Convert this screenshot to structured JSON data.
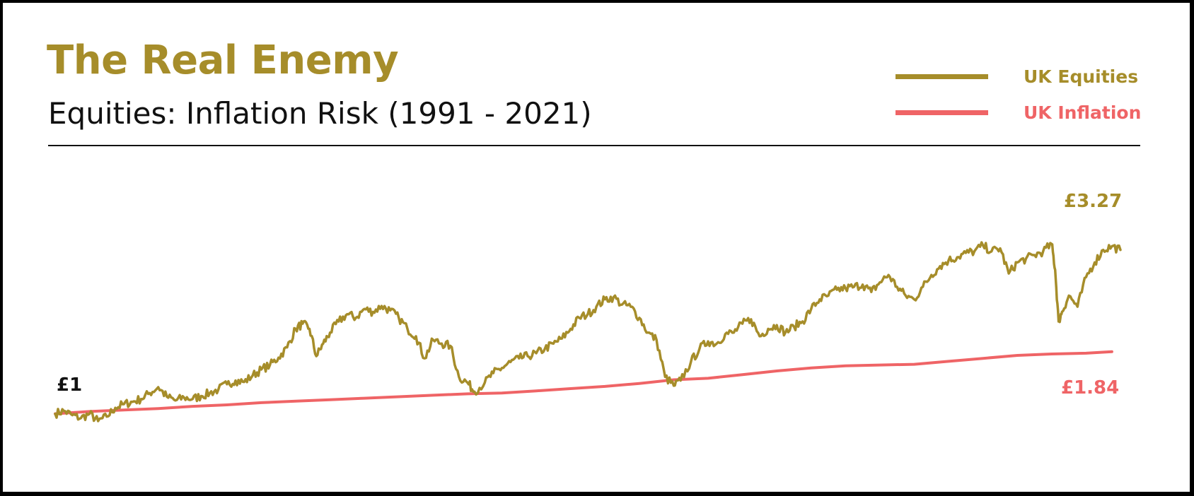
{
  "colors": {
    "equities": "#a68d2a",
    "inflation": "#ef6466",
    "text": "#111111"
  },
  "header": {
    "title": "The Real Enemy",
    "subtitle": "Equities: Inflation Risk (1991 - 2021)"
  },
  "labels": {
    "start": "£1",
    "equities_end": "£3.27",
    "inflation_end": "£1.84"
  },
  "chart_data": {
    "type": "line",
    "legend_position": "top-right",
    "grid": false,
    "axes_visible": false,
    "x_range": [
      1991,
      2021
    ],
    "y_range": [
      0.9,
      3.6
    ],
    "series": [
      {
        "name": "UK Equities",
        "color": "#a68d2a",
        "points": [
          [
            1991.0,
            1.0
          ],
          [
            1991.25,
            1.04
          ],
          [
            1991.5,
            0.98
          ],
          [
            1991.75,
            0.94
          ],
          [
            1992.0,
            1.0
          ],
          [
            1992.25,
            0.9
          ],
          [
            1992.5,
            0.96
          ],
          [
            1992.75,
            1.08
          ],
          [
            1993.0,
            1.13
          ],
          [
            1993.25,
            1.16
          ],
          [
            1993.5,
            1.2
          ],
          [
            1993.75,
            1.28
          ],
          [
            1994.0,
            1.36
          ],
          [
            1994.25,
            1.23
          ],
          [
            1994.5,
            1.18
          ],
          [
            1994.75,
            1.22
          ],
          [
            1995.0,
            1.2
          ],
          [
            1995.25,
            1.24
          ],
          [
            1995.5,
            1.28
          ],
          [
            1995.75,
            1.33
          ],
          [
            1996.0,
            1.4
          ],
          [
            1996.25,
            1.45
          ],
          [
            1996.5,
            1.43
          ],
          [
            1996.75,
            1.52
          ],
          [
            1997.0,
            1.6
          ],
          [
            1997.25,
            1.66
          ],
          [
            1997.5,
            1.76
          ],
          [
            1997.75,
            1.9
          ],
          [
            1998.0,
            2.15
          ],
          [
            1998.2,
            2.22
          ],
          [
            1998.4,
            2.15
          ],
          [
            1998.6,
            1.78
          ],
          [
            1998.8,
            1.95
          ],
          [
            1999.0,
            2.1
          ],
          [
            1999.25,
            2.25
          ],
          [
            1999.5,
            2.35
          ],
          [
            1999.75,
            2.3
          ],
          [
            2000.0,
            2.42
          ],
          [
            2000.25,
            2.38
          ],
          [
            2000.5,
            2.46
          ],
          [
            2000.75,
            2.4
          ],
          [
            2001.0,
            2.3
          ],
          [
            2001.25,
            2.15
          ],
          [
            2001.5,
            2.05
          ],
          [
            2001.75,
            1.75
          ],
          [
            2002.0,
            2.0
          ],
          [
            2002.25,
            1.95
          ],
          [
            2002.5,
            1.92
          ],
          [
            2002.75,
            1.5
          ],
          [
            2003.0,
            1.42
          ],
          [
            2003.2,
            1.3
          ],
          [
            2003.5,
            1.42
          ],
          [
            2003.75,
            1.55
          ],
          [
            2004.0,
            1.62
          ],
          [
            2004.25,
            1.7
          ],
          [
            2004.5,
            1.75
          ],
          [
            2004.75,
            1.78
          ],
          [
            2005.0,
            1.82
          ],
          [
            2005.25,
            1.88
          ],
          [
            2005.5,
            1.95
          ],
          [
            2005.75,
            2.02
          ],
          [
            2006.0,
            2.15
          ],
          [
            2006.25,
            2.3
          ],
          [
            2006.5,
            2.35
          ],
          [
            2006.75,
            2.45
          ],
          [
            2007.0,
            2.55
          ],
          [
            2007.25,
            2.58
          ],
          [
            2007.5,
            2.48
          ],
          [
            2007.75,
            2.45
          ],
          [
            2008.0,
            2.3
          ],
          [
            2008.25,
            2.1
          ],
          [
            2008.5,
            2.0
          ],
          [
            2008.75,
            1.5
          ],
          [
            2009.0,
            1.38
          ],
          [
            2009.2,
            1.45
          ],
          [
            2009.5,
            1.7
          ],
          [
            2009.75,
            1.88
          ],
          [
            2010.0,
            1.98
          ],
          [
            2010.25,
            1.95
          ],
          [
            2010.5,
            2.08
          ],
          [
            2010.75,
            2.1
          ],
          [
            2011.0,
            2.22
          ],
          [
            2011.25,
            2.28
          ],
          [
            2011.5,
            2.05
          ],
          [
            2011.75,
            2.15
          ],
          [
            2012.0,
            2.2
          ],
          [
            2012.25,
            2.1
          ],
          [
            2012.5,
            2.18
          ],
          [
            2012.75,
            2.25
          ],
          [
            2013.0,
            2.42
          ],
          [
            2013.25,
            2.55
          ],
          [
            2013.5,
            2.6
          ],
          [
            2013.75,
            2.68
          ],
          [
            2014.0,
            2.7
          ],
          [
            2014.25,
            2.72
          ],
          [
            2014.5,
            2.75
          ],
          [
            2014.75,
            2.65
          ],
          [
            2015.0,
            2.78
          ],
          [
            2015.25,
            2.88
          ],
          [
            2015.5,
            2.72
          ],
          [
            2015.75,
            2.6
          ],
          [
            2016.0,
            2.55
          ],
          [
            2016.25,
            2.72
          ],
          [
            2016.5,
            2.88
          ],
          [
            2016.75,
            3.0
          ],
          [
            2017.0,
            3.08
          ],
          [
            2017.25,
            3.12
          ],
          [
            2017.5,
            3.18
          ],
          [
            2017.75,
            3.2
          ],
          [
            2018.0,
            3.28
          ],
          [
            2018.25,
            3.2
          ],
          [
            2018.5,
            3.24
          ],
          [
            2018.75,
            2.9
          ],
          [
            2019.0,
            3.05
          ],
          [
            2019.25,
            3.1
          ],
          [
            2019.5,
            3.15
          ],
          [
            2019.75,
            3.2
          ],
          [
            2020.0,
            3.3
          ],
          [
            2020.1,
            2.95
          ],
          [
            2020.2,
            2.25
          ],
          [
            2020.3,
            2.38
          ],
          [
            2020.5,
            2.6
          ],
          [
            2020.75,
            2.45
          ],
          [
            2021.0,
            2.85
          ],
          [
            2021.25,
            3.05
          ],
          [
            2021.5,
            3.22
          ],
          [
            2021.75,
            3.27
          ],
          [
            2022.0,
            3.22
          ]
        ]
      },
      {
        "name": "UK Inflation",
        "color": "#ef6466",
        "points": [
          [
            1991.0,
            1.0
          ],
          [
            1992.0,
            1.03
          ],
          [
            1993.0,
            1.05
          ],
          [
            1994.0,
            1.07
          ],
          [
            1995.0,
            1.1
          ],
          [
            1996.0,
            1.12
          ],
          [
            1997.0,
            1.15
          ],
          [
            1998.0,
            1.17
          ],
          [
            1999.0,
            1.19
          ],
          [
            2000.0,
            1.21
          ],
          [
            2001.0,
            1.23
          ],
          [
            2002.0,
            1.25
          ],
          [
            2003.0,
            1.27
          ],
          [
            2004.0,
            1.28
          ],
          [
            2005.0,
            1.31
          ],
          [
            2006.0,
            1.34
          ],
          [
            2007.0,
            1.37
          ],
          [
            2008.0,
            1.41
          ],
          [
            2009.0,
            1.46
          ],
          [
            2010.0,
            1.48
          ],
          [
            2011.0,
            1.53
          ],
          [
            2012.0,
            1.58
          ],
          [
            2013.0,
            1.62
          ],
          [
            2014.0,
            1.65
          ],
          [
            2015.0,
            1.66
          ],
          [
            2016.0,
            1.67
          ],
          [
            2017.0,
            1.71
          ],
          [
            2018.0,
            1.75
          ],
          [
            2019.0,
            1.79
          ],
          [
            2020.0,
            1.81
          ],
          [
            2021.0,
            1.82
          ],
          [
            2021.75,
            1.84
          ]
        ]
      }
    ]
  }
}
